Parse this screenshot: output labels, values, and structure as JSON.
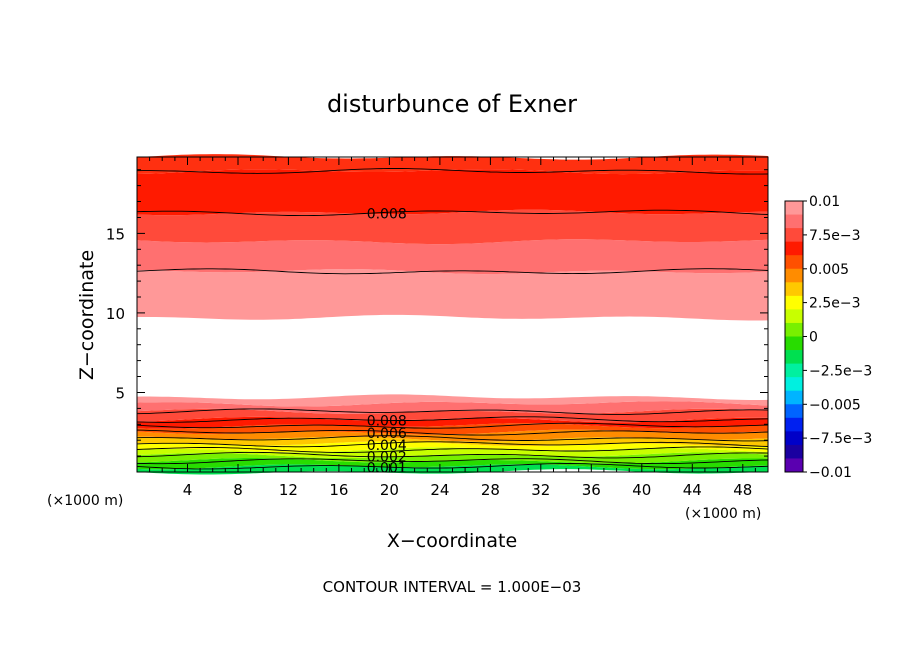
{
  "chart_data": {
    "type": "heatmap",
    "title": "disturbunce of Exner",
    "xlabel": "X−coordinate",
    "ylabel": "Z−coordinate",
    "x_unit_left": "(×1000 m)",
    "x_unit_right": "(×1000 m)",
    "xlim": [
      0,
      50
    ],
    "ylim": [
      0,
      19.8
    ],
    "x_ticks": [
      4,
      8,
      12,
      16,
      20,
      24,
      28,
      32,
      36,
      40,
      44,
      48
    ],
    "y_ticks": [
      5,
      10,
      15
    ],
    "contour_interval_text": "CONTOUR INTERVAL = 1.000E−03",
    "colorbar": {
      "labels": [
        "0.01",
        "7.5e−3",
        "0.005",
        "2.5e−3",
        "0",
        "−2.5e−3",
        "−0.005",
        "−7.5e−3",
        "−0.01"
      ],
      "levels": [
        0.01,
        0.0075,
        0.005,
        0.0025,
        0,
        -0.0025,
        -0.005,
        -0.0075,
        -0.01
      ],
      "colors_top_to_bottom": [
        "#ff9898",
        "#ff7070",
        "#ff4a3a",
        "#ff1a00",
        "#ff5000",
        "#ff8c00",
        "#ffc800",
        "#ffff00",
        "#c8ff00",
        "#78f000",
        "#28dc00",
        "#00e050",
        "#00f0a0",
        "#00f0e0",
        "#00b4ff",
        "#0064ff",
        "#0020f0",
        "#0000c8",
        "#1a00a0",
        "#5a00b0"
      ]
    },
    "bands": [
      {
        "from": 0.0,
        "to": 0.35,
        "color": "#00e050"
      },
      {
        "from": 0.35,
        "to": 0.7,
        "color": "#28dc00"
      },
      {
        "from": 0.7,
        "to": 1.05,
        "color": "#78f000"
      },
      {
        "from": 1.05,
        "to": 1.4,
        "color": "#c8ff00"
      },
      {
        "from": 1.4,
        "to": 1.75,
        "color": "#ffff00"
      },
      {
        "from": 1.75,
        "to": 2.1,
        "color": "#ffc800"
      },
      {
        "from": 2.1,
        "to": 2.5,
        "color": "#ff8c00"
      },
      {
        "from": 2.5,
        "to": 2.9,
        "color": "#ff5000"
      },
      {
        "from": 2.9,
        "to": 3.3,
        "color": "#ff1a00"
      },
      {
        "from": 3.3,
        "to": 3.8,
        "color": "#ff4a3a"
      },
      {
        "from": 3.8,
        "to": 4.3,
        "color": "#ff7070"
      },
      {
        "from": 4.3,
        "to": 4.7,
        "color": "#ff9898"
      },
      {
        "from": 9.7,
        "to": 12.6,
        "color": "#ff9898"
      },
      {
        "from": 12.6,
        "to": 14.5,
        "color": "#ff7070"
      },
      {
        "from": 14.5,
        "to": 16.3,
        "color": "#ff4a3a"
      },
      {
        "from": 16.3,
        "to": 18.9,
        "color": "#ff1a00"
      },
      {
        "from": 18.9,
        "to": 19.8,
        "color": "#ff3010"
      }
    ],
    "contours": [
      {
        "z": 0.35,
        "label": "0.001",
        "label_x": 18.2
      },
      {
        "z": 0.7,
        "label": "",
        "label_x": null
      },
      {
        "z": 1.05,
        "label": "0.002",
        "label_x": 18.2
      },
      {
        "z": 1.4,
        "label": "",
        "label_x": null
      },
      {
        "z": 1.75,
        "label": "0.004",
        "label_x": 18.2
      },
      {
        "z": 2.1,
        "label": "",
        "label_x": null
      },
      {
        "z": 2.5,
        "label": "0.006",
        "label_x": 18.2
      },
      {
        "z": 2.9,
        "label": "",
        "label_x": null
      },
      {
        "z": 3.3,
        "label": "0.008",
        "label_x": 18.2
      },
      {
        "z": 3.8,
        "label": "",
        "label_x": null
      },
      {
        "z": 12.6,
        "label": "",
        "label_x": null
      },
      {
        "z": 16.3,
        "label": "0.008",
        "label_x": 18.2
      },
      {
        "z": 18.9,
        "label": "",
        "label_x": null
      }
    ]
  }
}
